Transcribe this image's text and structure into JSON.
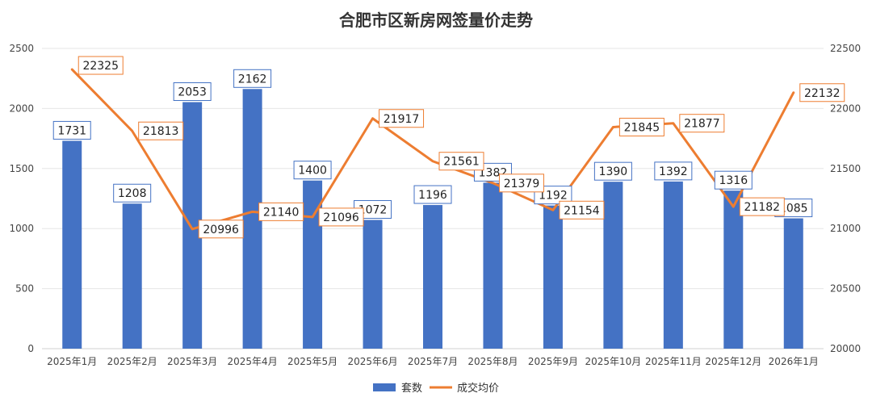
{
  "chart_data": {
    "type": "bar-line-combo",
    "title": "合肥市区新房网签量价走势",
    "categories": [
      "2025年1月",
      "2025年2月",
      "2025年3月",
      "2025年4月",
      "2025年5月",
      "2025年6月",
      "2025年7月",
      "2025年8月",
      "2025年9月",
      "2025年10月",
      "2025年11月",
      "2025年12月",
      "2026年1月"
    ],
    "series": [
      {
        "name": "套数",
        "type": "bar",
        "axis": "left",
        "color": "#4472C4",
        "values": [
          1731,
          1208,
          2053,
          2162,
          1400,
          1072,
          1196,
          1382,
          1192,
          1390,
          1392,
          1316,
          1085
        ]
      },
      {
        "name": "成交均价",
        "type": "line",
        "axis": "right",
        "color": "#ED7D31",
        "values": [
          22325,
          21813,
          20996,
          21140,
          21096,
          21917,
          21561,
          21379,
          21154,
          21845,
          21877,
          21182,
          22132
        ]
      }
    ],
    "left_axis": {
      "min": 0,
      "max": 2500,
      "step": 500
    },
    "right_axis": {
      "min": 20000,
      "max": 22500,
      "step": 500
    },
    "grid": true,
    "legend_position": "bottom",
    "data_labels": true
  }
}
